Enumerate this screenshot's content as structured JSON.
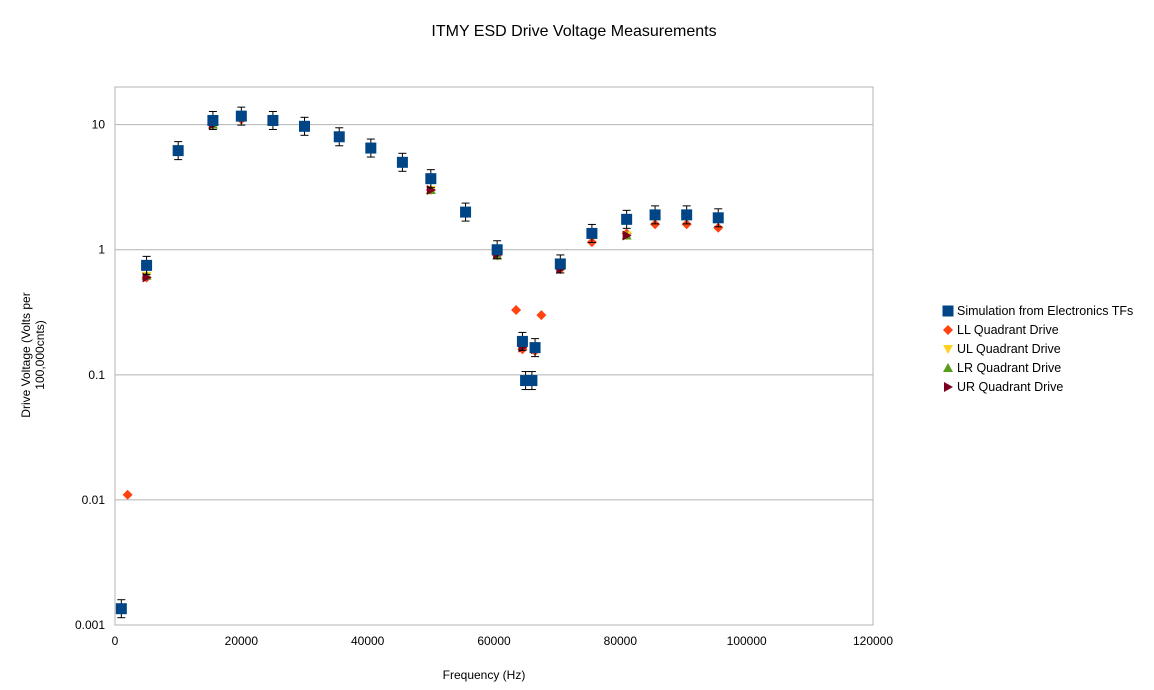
{
  "chart_data": {
    "type": "scatter",
    "title": "ITMY ESD Drive Voltage Measurements",
    "xlabel": "Frequency (Hz)",
    "ylabel": "Drive Voltage (Volts per 100,000cnts)",
    "xlim": [
      0,
      120000
    ],
    "ylim": [
      0.001,
      20
    ],
    "yscale": "log",
    "grid": "horizontal",
    "legend_position": "right",
    "x_ticks": [
      "0",
      "20000",
      "40000",
      "60000",
      "80000",
      "100000",
      "120000"
    ],
    "y_ticks": [
      "0.001",
      "0.01",
      "0.1",
      "1",
      "10"
    ],
    "series": [
      {
        "name": "Simulation from Electronics TFs",
        "marker": "square",
        "color": "#004586",
        "error_bars": true,
        "points": [
          [
            1000,
            0.00135
          ],
          [
            5000,
            0.75
          ],
          [
            10000,
            6.2
          ],
          [
            15500,
            10.8
          ],
          [
            20000,
            11.7
          ],
          [
            25000,
            10.8
          ],
          [
            30000,
            9.7
          ],
          [
            35500,
            8.0
          ],
          [
            40500,
            6.5
          ],
          [
            45500,
            5.0
          ],
          [
            50000,
            3.7
          ],
          [
            55500,
            2.0
          ],
          [
            60500,
            1.0
          ],
          [
            64500,
            0.185
          ],
          [
            65000,
            0.09
          ],
          [
            66000,
            0.09
          ],
          [
            66500,
            0.165
          ],
          [
            70500,
            0.77
          ],
          [
            75500,
            1.35
          ],
          [
            81000,
            1.75
          ],
          [
            85500,
            1.9
          ],
          [
            90500,
            1.9
          ],
          [
            95500,
            1.8
          ]
        ]
      },
      {
        "name": "LL Quadrant Drive",
        "marker": "diamond",
        "color": "#ff420e",
        "points": [
          [
            2000,
            0.011
          ],
          [
            5000,
            0.6
          ],
          [
            15500,
            10.0
          ],
          [
            20000,
            11.0
          ],
          [
            50000,
            3.0
          ],
          [
            60500,
            0.9
          ],
          [
            63500,
            0.33
          ],
          [
            64500,
            0.16
          ],
          [
            66500,
            0.155
          ],
          [
            67500,
            0.3
          ],
          [
            70500,
            0.7
          ],
          [
            75500,
            1.15
          ],
          [
            81000,
            1.35
          ],
          [
            85500,
            1.6
          ],
          [
            90500,
            1.6
          ],
          [
            95500,
            1.5
          ]
        ]
      },
      {
        "name": "UL Quadrant Drive",
        "marker": "triangle-down",
        "color": "#ffd320",
        "points": [
          [
            5000,
            0.62
          ],
          [
            15500,
            10.0
          ],
          [
            50000,
            3.0
          ],
          [
            60500,
            0.9
          ],
          [
            70500,
            0.72
          ],
          [
            81000,
            1.3
          ]
        ]
      },
      {
        "name": "LR Quadrant Drive",
        "marker": "triangle-up",
        "color": "#579d1c",
        "points": [
          [
            5000,
            0.62
          ],
          [
            15500,
            10.0
          ],
          [
            50000,
            3.0
          ],
          [
            60500,
            0.9
          ],
          [
            81000,
            1.3
          ]
        ]
      },
      {
        "name": "UR Quadrant Drive",
        "marker": "triangle-right",
        "color": "#7e0021",
        "points": [
          [
            5000,
            0.6
          ],
          [
            15500,
            10.0
          ],
          [
            50000,
            3.0
          ],
          [
            60500,
            0.92
          ],
          [
            64500,
            0.165
          ],
          [
            66500,
            0.16
          ],
          [
            70500,
            0.7
          ],
          [
            81000,
            1.3
          ]
        ]
      }
    ]
  }
}
